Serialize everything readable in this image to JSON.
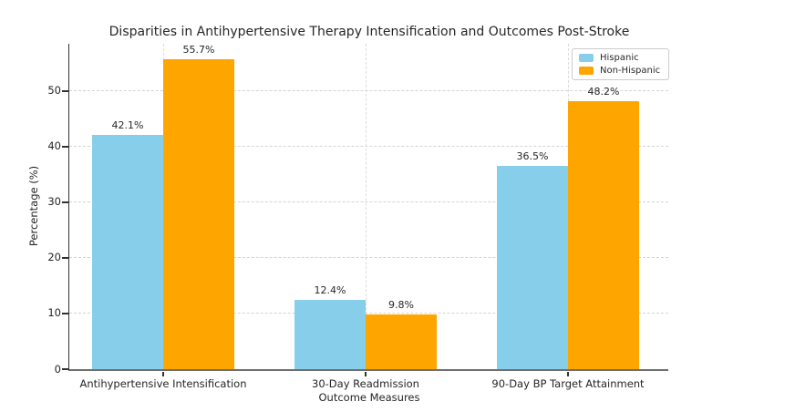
{
  "chart_data": {
    "type": "bar",
    "title": "Disparities in Antihypertensive Therapy Intensification and Outcomes Post-Stroke",
    "xlabel": "Outcome Measures",
    "ylabel": "Percentage (%)",
    "categories": [
      "Antihypertensive Intensification",
      "30-Day Readmission",
      "90-Day BP Target Attainment"
    ],
    "series": [
      {
        "name": "Hispanic",
        "color": "#87CEEB",
        "values": [
          42.1,
          12.4,
          36.5
        ],
        "labels": [
          "42.1%",
          "12.4%",
          "36.5%"
        ]
      },
      {
        "name": "Non-Hispanic",
        "color": "#FFA500",
        "values": [
          55.7,
          9.8,
          48.2
        ],
        "labels": [
          "55.7%",
          "9.8%",
          "48.2%"
        ]
      }
    ],
    "yticks": [
      0,
      10,
      20,
      30,
      40,
      50
    ],
    "ylim": [
      0,
      58.5
    ],
    "grid": true,
    "grid_style": "dashed",
    "legend_position": "upper right"
  },
  "style": {
    "background": "#ffffff",
    "gridline_color": "#d4d4d4",
    "axis_color": "#333333",
    "text_color": "#262626"
  }
}
